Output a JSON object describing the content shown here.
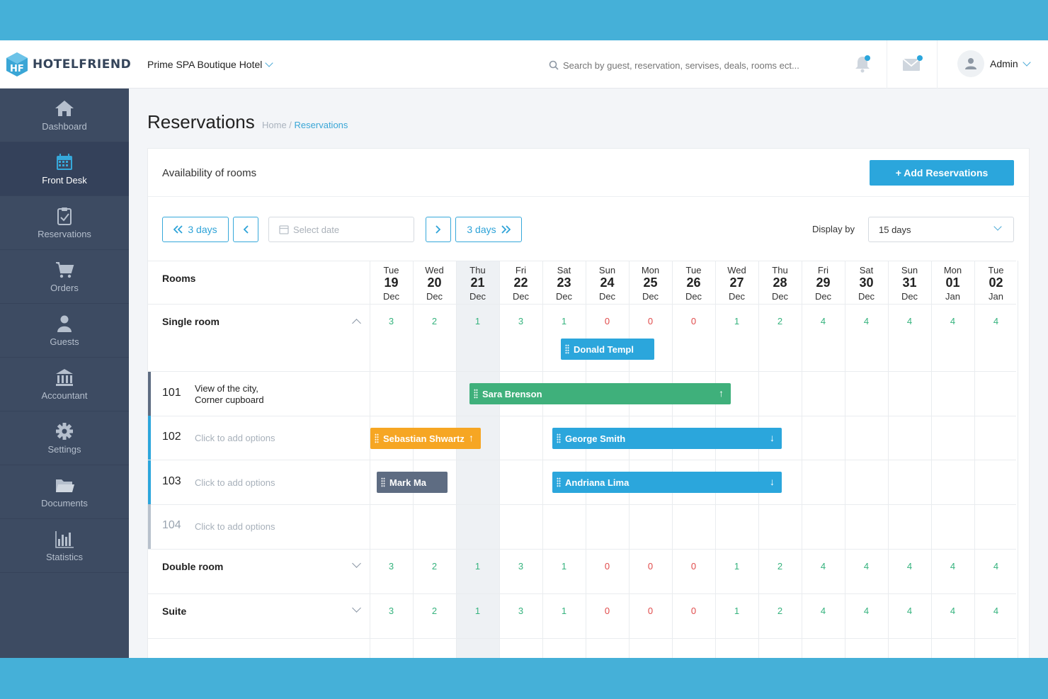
{
  "app": {
    "brand": "HOTELFRIEND",
    "hotel": "Prime SPA Boutique Hotel",
    "search_placeholder": "Search by guest, reservation, servises, deals, rooms ect...",
    "user": "Admin"
  },
  "sidebar": {
    "items": [
      {
        "label": "Dashboard",
        "icon": "home-icon"
      },
      {
        "label": "Front Desk",
        "icon": "calendar-icon",
        "active": true
      },
      {
        "label": "Reservations",
        "icon": "clipboard-icon"
      },
      {
        "label": "Orders",
        "icon": "cart-icon"
      },
      {
        "label": "Guests",
        "icon": "user-icon"
      },
      {
        "label": "Accountant",
        "icon": "bank-icon"
      },
      {
        "label": "Settings",
        "icon": "gear-icon"
      },
      {
        "label": "Documents",
        "icon": "folder-icon"
      },
      {
        "label": "Statistics",
        "icon": "bar-chart-icon"
      }
    ]
  },
  "page": {
    "title": "Reservations",
    "breadcrumb_home": "Home",
    "breadcrumb_sep": " / ",
    "breadcrumb_current": "Reservations"
  },
  "card": {
    "title": "Availability of rooms",
    "add_label": "+ Add Reservations"
  },
  "toolbar": {
    "prev_label": "3 days",
    "next_label": "3 days",
    "date_placeholder": "Select date",
    "display_label": "Display by",
    "display_value": "15 days"
  },
  "grid": {
    "rooms_header": "Rooms",
    "days": [
      {
        "name": "Tue",
        "date": "19",
        "month": "Dec"
      },
      {
        "name": "Wed",
        "date": "20",
        "month": "Dec"
      },
      {
        "name": "Thu",
        "date": "21",
        "month": "Dec"
      },
      {
        "name": "Fri",
        "date": "22",
        "month": "Dec"
      },
      {
        "name": "Sat",
        "date": "23",
        "month": "Dec"
      },
      {
        "name": "Sun",
        "date": "24",
        "month": "Dec"
      },
      {
        "name": "Mon",
        "date": "25",
        "month": "Dec"
      },
      {
        "name": "Tue",
        "date": "26",
        "month": "Dec"
      },
      {
        "name": "Wed",
        "date": "27",
        "month": "Dec"
      },
      {
        "name": "Thu",
        "date": "28",
        "month": "Dec"
      },
      {
        "name": "Fri",
        "date": "29",
        "month": "Dec"
      },
      {
        "name": "Sat",
        "date": "30",
        "month": "Dec"
      },
      {
        "name": "Sun",
        "date": "31",
        "month": "Dec"
      },
      {
        "name": "Mon",
        "date": "01",
        "month": "Jan"
      },
      {
        "name": "Tue",
        "date": "02",
        "month": "Jan"
      }
    ],
    "categories": [
      {
        "name": "Single room",
        "availability": [
          "3",
          "2",
          "1",
          "3",
          "1",
          "0",
          "0",
          "0",
          "1",
          "2",
          "4",
          "4",
          "4",
          "4",
          "4"
        ]
      },
      {
        "name": "Double room",
        "availability": [
          "3",
          "2",
          "1",
          "3",
          "1",
          "0",
          "0",
          "0",
          "1",
          "2",
          "4",
          "4",
          "4",
          "4",
          "4"
        ]
      },
      {
        "name": "Suite",
        "availability": [
          "3",
          "2",
          "1",
          "3",
          "1",
          "0",
          "0",
          "0",
          "1",
          "2",
          "4",
          "4",
          "4",
          "4",
          "4"
        ]
      }
    ],
    "rooms": [
      {
        "number": "101",
        "desc_line1": "View of the city,",
        "desc_line2": "Corner cupboard"
      },
      {
        "number": "102",
        "options": "Click to add options"
      },
      {
        "number": "103",
        "options": "Click to add options"
      },
      {
        "number": "104",
        "options": "Click to add options"
      }
    ],
    "reservations": [
      {
        "guest": "Donald Templ",
        "color": "#2ba6dc"
      },
      {
        "guest": "Sara Brenson",
        "color": "#3fb07b"
      },
      {
        "guest": "Sebastian Shwartz",
        "color": "#f6a623"
      },
      {
        "guest": "George Smith",
        "color": "#2ba6dc"
      },
      {
        "guest": "Mark Ma",
        "color": "#5e6c82"
      },
      {
        "guest": "Andriana Lima",
        "color": "#2ba6dc"
      }
    ]
  },
  "colors": {
    "accent": "#2ba6dc",
    "sidebar": "#3d4b62",
    "available": "#36b37e",
    "unavailable": "#e04a4a"
  }
}
